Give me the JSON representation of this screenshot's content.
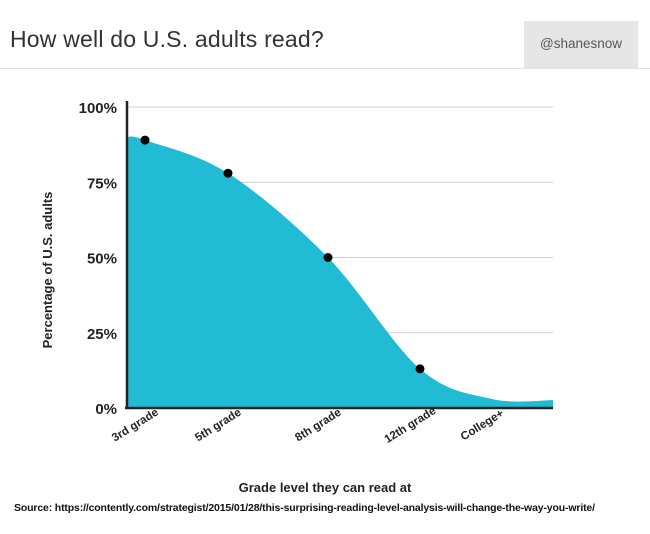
{
  "header": {
    "title": "How well do U.S. adults read?",
    "handle": "@shanesnow"
  },
  "source": "Source: https://contently.com/strategist/2015/01/28/this-surprising-reading-level-analysis-will-change-the-way-you-write/",
  "chart_data": {
    "type": "area",
    "title": "How well do U.S. adults read?",
    "xlabel": "Grade level they can read at",
    "ylabel": "Percentage of U.S. adults",
    "categories": [
      "3rd grade",
      "5th grade",
      "8th grade",
      "12th grade",
      "College+"
    ],
    "values": [
      89,
      78,
      50,
      13,
      3
    ],
    "ylim": [
      0,
      100
    ],
    "yticks": [
      "0%",
      "25%",
      "50%",
      "75%",
      "100%"
    ],
    "grid": true,
    "fill_color": "#21bcd4",
    "marker_color": "#000000"
  }
}
